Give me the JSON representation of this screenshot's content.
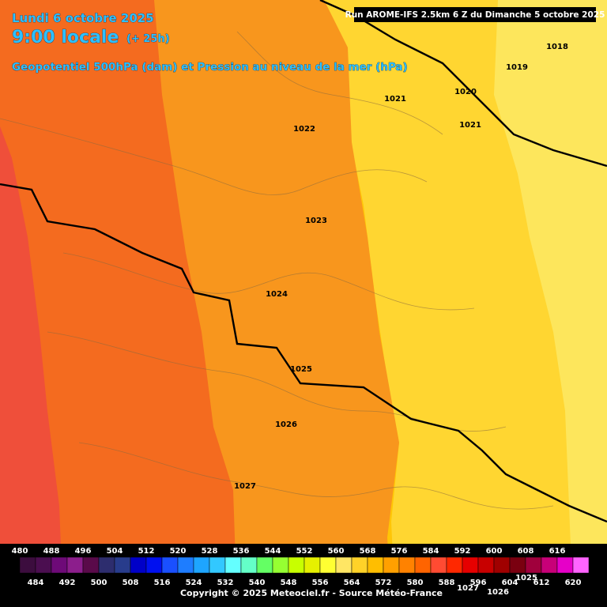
{
  "header": {
    "date": "Lundi 6 octobre 2025",
    "time": "9:00 locale",
    "lead": "(+ 25h)",
    "subtitle": "Geopotentiel 500hPa (dam) et Pression au niveau de la mer (hPa)",
    "run": "Run AROME-IFS 2.5km 6 Z du Dimanche 5 octobre 2025"
  },
  "isobar_labels": [
    "1018",
    "1019",
    "1020",
    "1021",
    "1021",
    "1022",
    "1023",
    "1024",
    "1025",
    "1026",
    "1027",
    "1025",
    "1027",
    "1026"
  ],
  "legend": {
    "top_labels": [
      480,
      488,
      496,
      504,
      512,
      520,
      528,
      536,
      544,
      552,
      560,
      568,
      576,
      584,
      592,
      600,
      608,
      616
    ],
    "bottom_labels": [
      484,
      492,
      500,
      508,
      516,
      524,
      532,
      540,
      548,
      556,
      564,
      572,
      580,
      588,
      596,
      604,
      612,
      620
    ],
    "colors": [
      "#3c0d3e",
      "#4b0e50",
      "#6e0a78",
      "#8c1e8c",
      "#5a0a4a",
      "#2d2d6e",
      "#283c8c",
      "#0000c8",
      "#0010f0",
      "#1a50ff",
      "#1e7dff",
      "#1ea5ff",
      "#32c8ff",
      "#64ffff",
      "#64ffc8",
      "#64ff64",
      "#96ff32",
      "#c8ff00",
      "#e6f000",
      "#ffff32",
      "#ffe664",
      "#ffd228",
      "#ffbe00",
      "#ffa000",
      "#ff8200",
      "#ff6400",
      "#ff4b32",
      "#ff2800",
      "#e60000",
      "#c80000",
      "#a00000",
      "#7a0010",
      "#a0003c",
      "#c80078",
      "#e600c8",
      "#ff64ff"
    ]
  },
  "footer": "Copyright © 2025 Meteociel.fr - Source Météo-France"
}
